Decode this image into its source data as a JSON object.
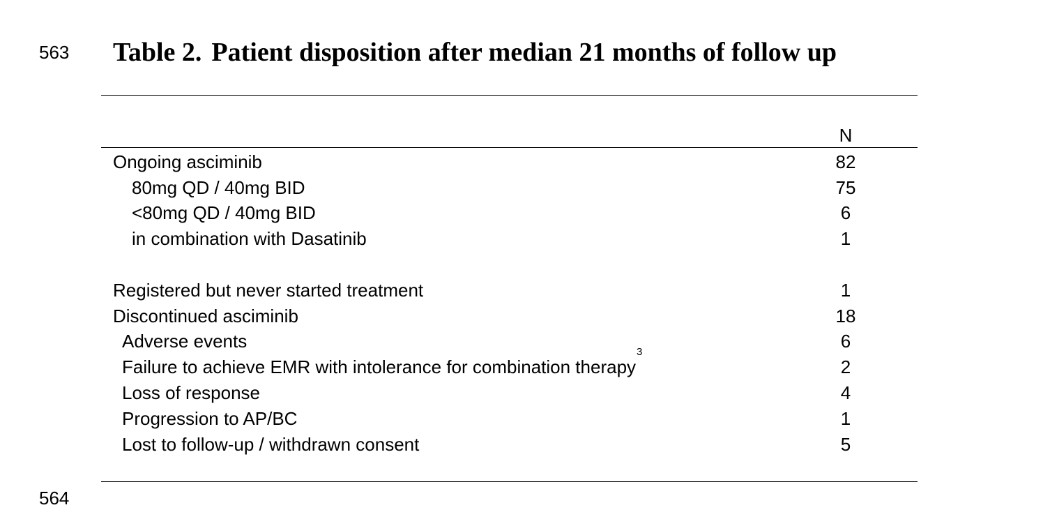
{
  "line_numbers": {
    "top": "563",
    "bottom": "564"
  },
  "title": {
    "number": "Table 2.",
    "text": "Patient disposition after median 21 months of follow up"
  },
  "table": {
    "column_header": "N",
    "rows": [
      {
        "label": "Ongoing asciminib",
        "value": "82",
        "superscript": ""
      },
      {
        "label": "80mg QD / 40mg BID",
        "value": "75",
        "superscript": ""
      },
      {
        "label": "<80mg QD / 40mg BID",
        "value": "6",
        "superscript": ""
      },
      {
        "label": "in combination with Dasatinib",
        "value": "1",
        "superscript": ""
      },
      {
        "label": "Registered but never started treatment",
        "value": "1",
        "superscript": ""
      },
      {
        "label": "Discontinued asciminib",
        "value": "18",
        "superscript": ""
      },
      {
        "label": "Adverse events",
        "value": "6",
        "superscript": ""
      },
      {
        "label": "Failure to achieve EMR with intolerance for combination therapy",
        "value": "2",
        "superscript": "3"
      },
      {
        "label": "Loss of response",
        "value": "4",
        "superscript": ""
      },
      {
        "label": "Progression to AP/BC",
        "value": "1",
        "superscript": ""
      },
      {
        "label": "Lost to follow-up / withdrawn consent",
        "value": "5",
        "superscript": ""
      }
    ]
  }
}
